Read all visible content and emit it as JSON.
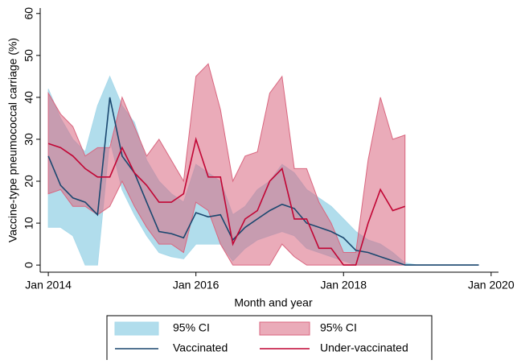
{
  "chart_data": {
    "type": "line",
    "x_label": "Month and year",
    "y_label": "Vaccine-type pneumococcal carriage (%)",
    "x": [
      2014,
      2014.167,
      2014.333,
      2014.5,
      2014.667,
      2014.833,
      2015,
      2015.167,
      2015.333,
      2015.5,
      2015.667,
      2015.833,
      2016,
      2016.167,
      2016.333,
      2016.5,
      2016.667,
      2016.833,
      2017,
      2017.167,
      2017.333,
      2017.5,
      2017.667,
      2017.833,
      2018,
      2018.167,
      2018.333,
      2018.5,
      2018.667,
      2018.833,
      2019,
      2019.167,
      2019.333,
      2019.5,
      2019.667,
      2019.833
    ],
    "xlim": [
      2013.89,
      2020.1
    ],
    "xticks": [
      {
        "value": 2014,
        "label": "Jan 2014"
      },
      {
        "value": 2016,
        "label": "Jan 2016"
      },
      {
        "value": 2018,
        "label": "Jan 2018"
      },
      {
        "value": 2020,
        "label": "Jan 2020"
      }
    ],
    "ylim": [
      -1.7,
      61.3
    ],
    "yticks": [
      0,
      10,
      20,
      30,
      40,
      50,
      60
    ],
    "grid": false,
    "series": [
      {
        "name": "95% CI",
        "kind": "band",
        "color": "#a9d9ea",
        "upper": [
          42,
          35,
          30,
          27,
          38,
          45,
          38,
          34,
          25,
          20,
          17,
          15,
          24,
          22,
          20,
          12,
          14,
          18,
          20,
          24,
          22,
          18,
          16,
          14,
          11,
          8,
          6,
          5,
          3,
          0.5,
          0,
          0,
          0,
          0,
          0,
          0
        ],
        "lower": [
          9,
          9,
          7,
          0,
          0,
          30,
          18,
          12,
          7,
          3,
          2,
          1.5,
          5,
          5,
          5,
          1,
          4,
          6,
          7,
          8,
          7,
          4,
          3,
          2,
          1,
          0,
          0,
          0,
          0,
          0,
          0,
          0,
          0,
          0,
          0,
          0
        ]
      },
      {
        "name": "95% CI",
        "kind": "band",
        "color": "#d9667f",
        "upper": [
          41,
          36,
          33,
          26,
          28,
          28,
          40,
          33,
          26,
          30,
          25,
          20,
          45,
          48,
          37,
          20,
          26,
          27,
          41,
          45,
          23,
          23,
          15,
          10,
          3,
          3,
          25,
          40,
          30,
          31,
          null,
          null,
          null,
          null,
          null,
          null
        ],
        "lower": [
          17,
          18,
          14,
          14,
          12,
          14,
          20,
          14,
          9,
          5,
          5,
          3,
          15,
          13,
          5,
          0,
          0,
          0,
          0,
          5,
          2,
          0,
          0,
          0,
          0,
          0,
          0,
          0,
          0,
          0,
          null,
          null,
          null,
          null,
          null,
          null
        ]
      },
      {
        "name": "Vaccinated",
        "kind": "line",
        "color": "#1a476f",
        "values": [
          26,
          19,
          16,
          15,
          12,
          40,
          26,
          22,
          15,
          8,
          7.5,
          6.5,
          12.5,
          11.5,
          12,
          6,
          9,
          11,
          13,
          14.5,
          13.5,
          10,
          9,
          8,
          6.5,
          3.5,
          3,
          2,
          1,
          0,
          0,
          0,
          0,
          0,
          0,
          0
        ]
      },
      {
        "name": "Under-vaccinated",
        "kind": "line",
        "color": "#c10534",
        "values": [
          29,
          28,
          26,
          23,
          21,
          21,
          28,
          22,
          19,
          15,
          15,
          17,
          30,
          21,
          21,
          5,
          11,
          13,
          20,
          23,
          11,
          11,
          4,
          4,
          0,
          0,
          10,
          18,
          13,
          14,
          null,
          null,
          null,
          null,
          null,
          null
        ]
      }
    ]
  }
}
